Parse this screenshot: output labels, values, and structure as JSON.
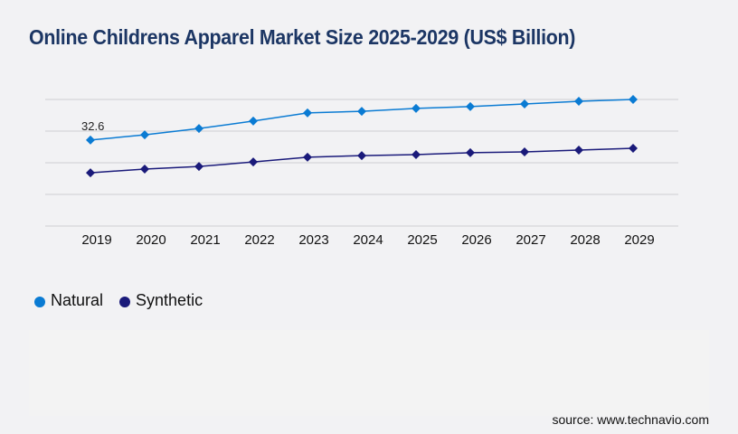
{
  "chart_data": {
    "type": "line",
    "title": "Online Childrens Apparel Market Size 2025-2029 (US$ Billion)",
    "xlabel": "",
    "ylabel": "",
    "categories": [
      "2019",
      "2020",
      "2021",
      "2022",
      "2023",
      "2024",
      "2025",
      "2026",
      "2027",
      "2028",
      "2029"
    ],
    "series": [
      {
        "name": "Natural",
        "color": "#0a7bd3",
        "values": [
          32.6,
          34.6,
          37.0,
          39.8,
          42.9,
          43.5,
          44.6,
          45.3,
          46.3,
          47.3,
          48.0
        ]
      },
      {
        "name": "Synthetic",
        "color": "#1a1a7a",
        "values": [
          20.2,
          21.6,
          22.6,
          24.3,
          26.1,
          26.7,
          27.1,
          27.8,
          28.1,
          28.8,
          29.5
        ]
      }
    ],
    "ylim": [
      0,
      48
    ],
    "ygrid_step": 12,
    "grid": true,
    "y_tick_labels_visible": false,
    "data_labels": [
      {
        "series": "Natural",
        "category": "2019",
        "text": "32.6"
      }
    ],
    "legend_position": "bottom-left"
  },
  "source": "source: www.technavio.com"
}
